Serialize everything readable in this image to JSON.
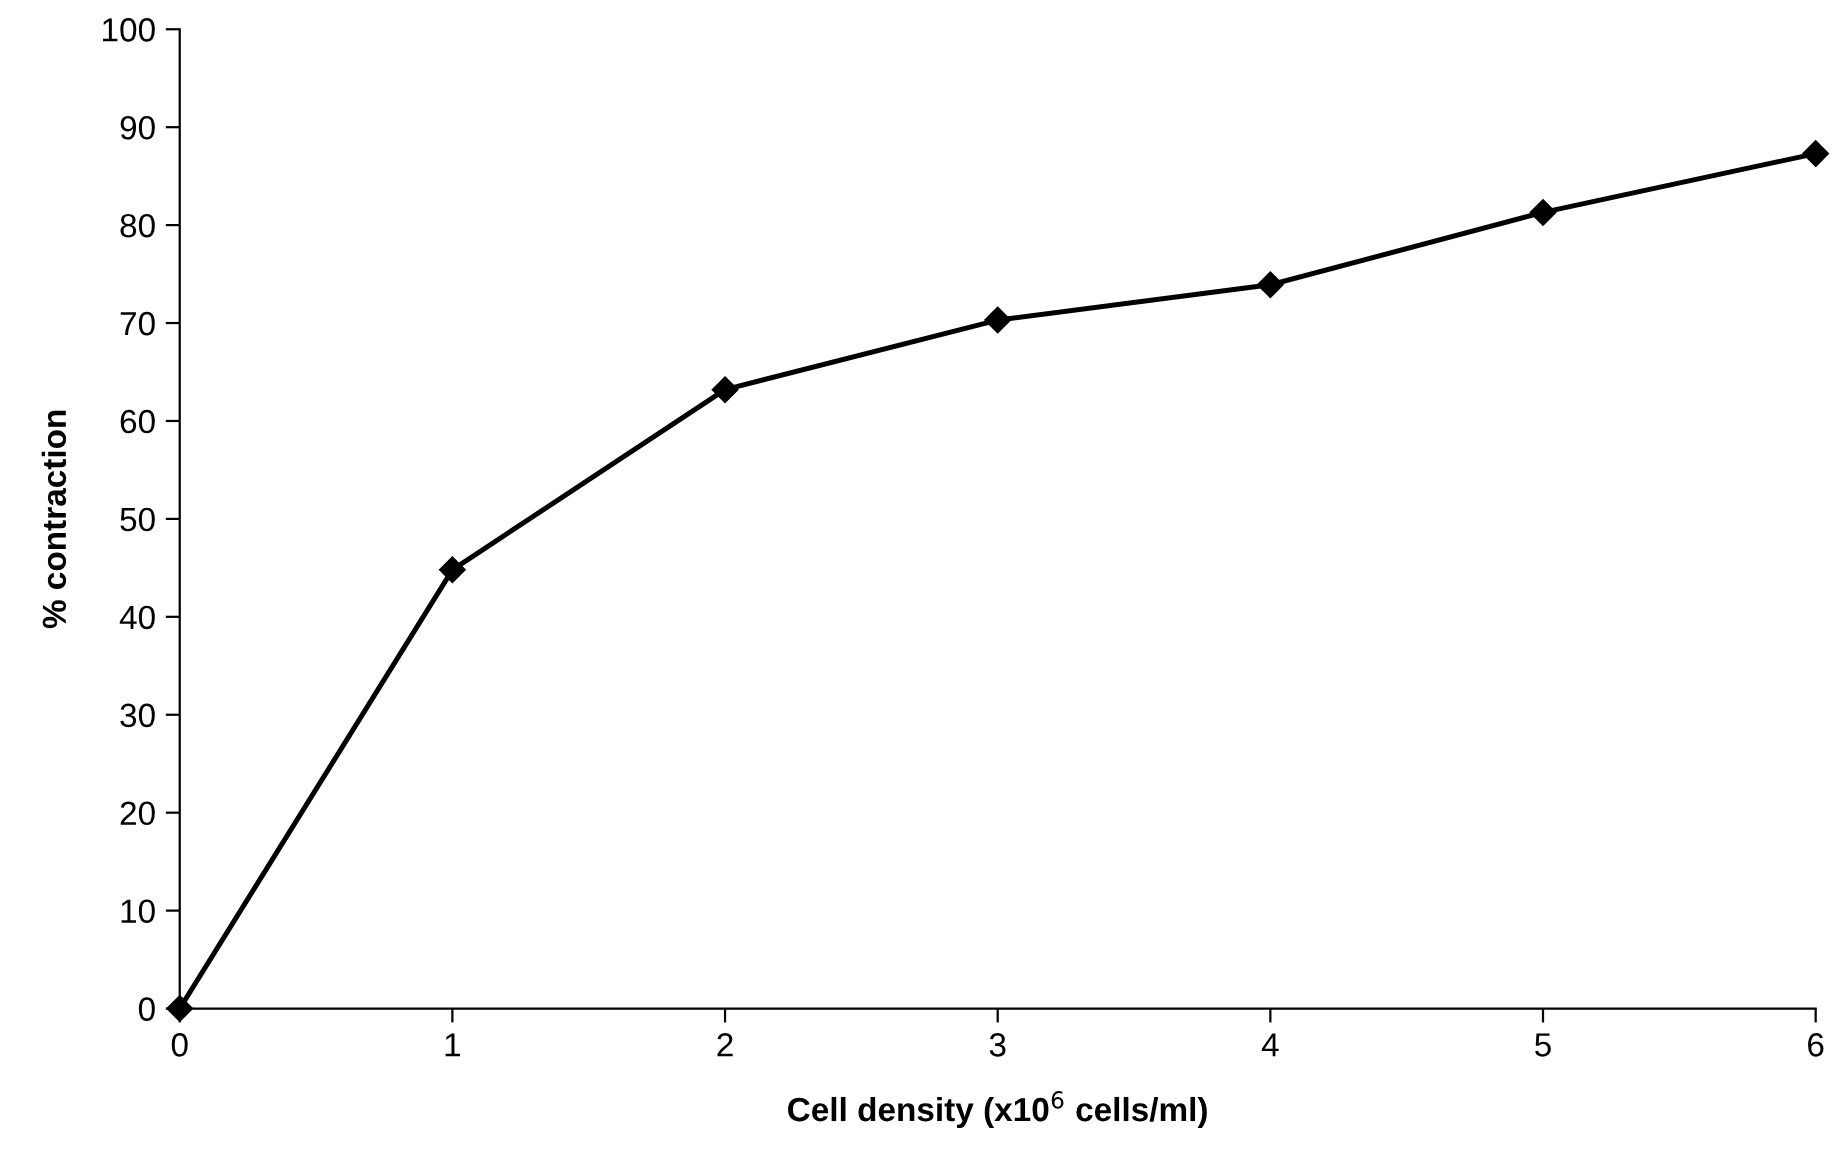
{
  "chart_data": {
    "type": "line",
    "xlabel": "Cell density (x10$^{6}$ cells/ml)",
    "ylabel": "% contraction",
    "x": [
      0,
      1,
      2,
      3,
      4,
      5,
      6
    ],
    "series": [
      {
        "color": "#000000",
        "values": [
          0,
          44.8,
          63.2,
          70.3,
          73.9,
          81.3,
          87.3
        ]
      }
    ],
    "xlim": [
      0,
      6
    ],
    "xticks": [
      0,
      1,
      2,
      3,
      4,
      5,
      6
    ],
    "ylim": [
      0,
      100
    ],
    "yticks": [
      0,
      10,
      20,
      30,
      40,
      50,
      60,
      70,
      80,
      90,
      100
    ],
    "grid": false,
    "marker": "diamond",
    "line_style": "solid"
  }
}
